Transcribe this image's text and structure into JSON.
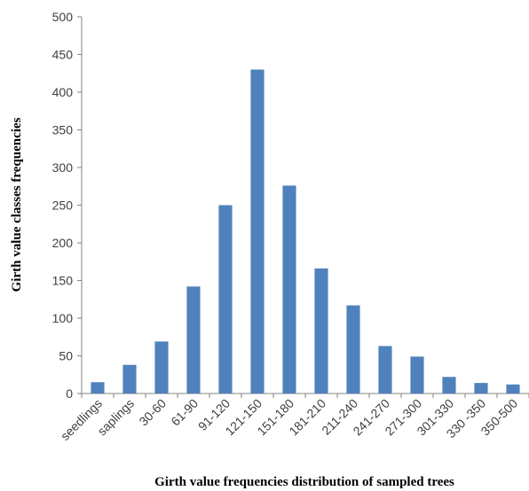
{
  "chart_data": {
    "type": "bar",
    "title": "",
    "xlabel": "Girth value frequencies distribution of sampled trees",
    "ylabel": "Girth value classes frequencies",
    "categories": [
      "seedlings",
      "saplings",
      "30-60",
      "61-90",
      "91-120",
      "121-150",
      "151-180",
      "181-210",
      "211-240",
      "241-270",
      "271-300",
      "301-330",
      "330 -350",
      "350-500"
    ],
    "values": [
      15,
      38,
      69,
      142,
      250,
      430,
      276,
      166,
      117,
      63,
      49,
      22,
      14,
      12
    ],
    "ylim": [
      0,
      500
    ],
    "yticks": [
      0,
      50,
      100,
      150,
      200,
      250,
      300,
      350,
      400,
      450,
      500
    ],
    "grid": false,
    "legend": "none",
    "colors": {
      "bar": "#4f81bd",
      "axis": "#868686",
      "tick_text": "#404040"
    }
  }
}
